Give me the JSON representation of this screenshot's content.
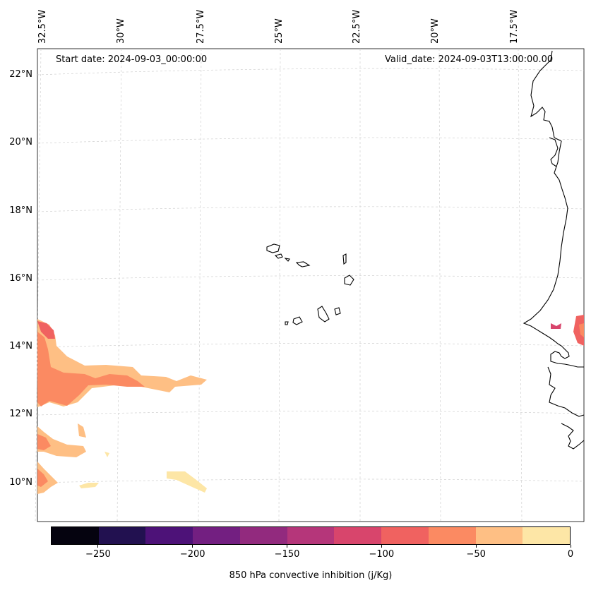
{
  "header": {
    "start_date": "Start date: 2024-09-03_00:00:00",
    "valid_date": "Valid_date: 2024-09-03T13:00:00.00"
  },
  "map": {
    "longitude_labels": [
      "32.5°W",
      "30°W",
      "27.5°W",
      "25°W",
      "22.5°W",
      "20°W",
      "17.5°W"
    ],
    "latitude_labels": [
      "22°N",
      "20°N",
      "18°N",
      "16°N",
      "14°N",
      "12°N",
      "10°N"
    ],
    "field": "850 hPa convective inhibition",
    "features": [
      "coastline",
      "Cape Verde islands",
      "West African coast"
    ]
  },
  "colorbar": {
    "label": "850 hPa convective inhibition (j/Kg)",
    "ticks": [
      "−250",
      "−200",
      "−150",
      "−100",
      "−50",
      "0"
    ],
    "tick_values": [
      -250,
      -200,
      -150,
      -100,
      -50,
      0
    ],
    "range": [
      -275,
      0
    ],
    "levels": [
      -275,
      -250,
      -225,
      -200,
      -175,
      -150,
      -125,
      -100,
      -75,
      -50,
      -25,
      0
    ],
    "colors": [
      "#05030f",
      "#221150",
      "#4d1278",
      "#731f81",
      "#922a7e",
      "#b5367a",
      "#d8456c",
      "#f06260",
      "#fb8a62",
      "#febf84",
      "#fde6a6"
    ]
  }
}
